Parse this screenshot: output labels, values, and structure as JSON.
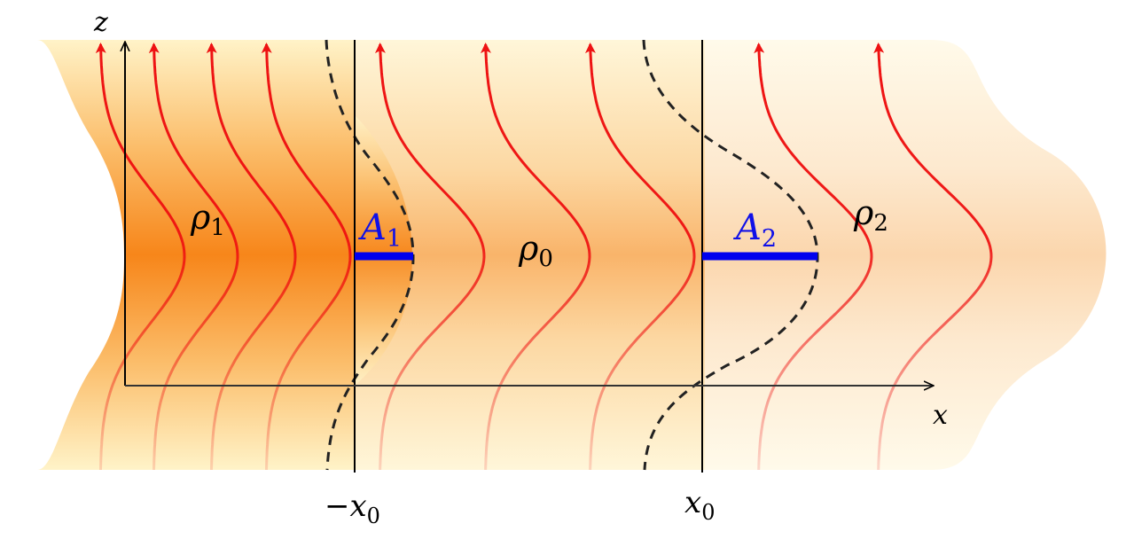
{
  "axes": {
    "x_label": "x",
    "z_label": "z"
  },
  "regions": {
    "rho1": {
      "symbol": "ρ",
      "sub": "1"
    },
    "rho0": {
      "symbol": "ρ",
      "sub": "0"
    },
    "rho2": {
      "symbol": "ρ",
      "sub": "2"
    }
  },
  "amplitudes": {
    "a1": {
      "symbol": "A",
      "sub": "1"
    },
    "a2": {
      "symbol": "A",
      "sub": "2"
    }
  },
  "ticks": {
    "neg_x0": {
      "prefix": "−x",
      "sub": "0"
    },
    "pos_x0": {
      "prefix": "x",
      "sub": "0"
    }
  },
  "colors": {
    "field_line": "#ee1111",
    "amplitude_bar": "#0000ee",
    "label_blue": "#1010e8",
    "dense_orange": "#f98b14",
    "light_background": "#fff8e0"
  }
}
